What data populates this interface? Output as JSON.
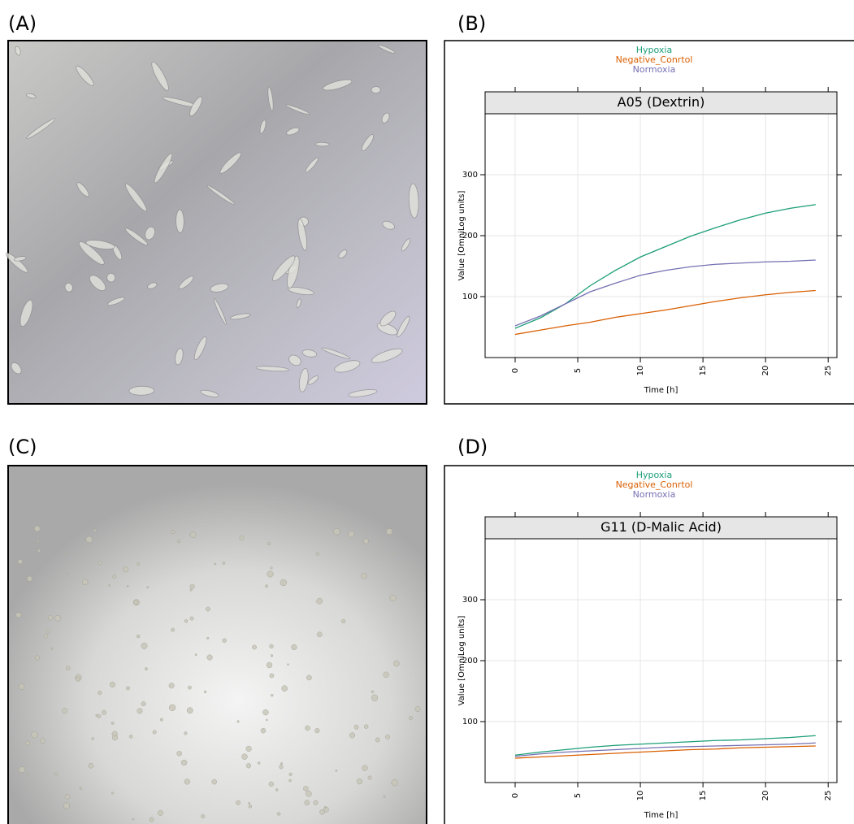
{
  "panel_labels": [
    "(A)",
    "(B)",
    "(C)",
    "(D)"
  ],
  "chart_data": [
    {
      "type": "line",
      "title": "A05 (Dextrin)",
      "ylabel": "Value [OmniLog units]",
      "xlabel": "Time [h]",
      "x": [
        0,
        2,
        4,
        6,
        8,
        10,
        12,
        14,
        16,
        18,
        20,
        22,
        24
      ],
      "series": [
        {
          "name": "Hypoxia",
          "color": "#1b9e77",
          "values": [
            48,
            65,
            88,
            118,
            143,
            165,
            182,
            199,
            213,
            226,
            237,
            245,
            251
          ]
        },
        {
          "name": "Negative_Conrtol",
          "color": "#d95f02",
          "values": [
            38,
            45,
            52,
            58,
            66,
            72,
            78,
            85,
            92,
            98,
            103,
            107,
            110
          ]
        },
        {
          "name": "Normoxia",
          "color": "#7570b3",
          "values": [
            52,
            68,
            88,
            108,
            122,
            135,
            143,
            149,
            153,
            155,
            157,
            158,
            160
          ]
        }
      ],
      "xlim": [
        -2.4,
        25.7
      ],
      "ylim": [
        0,
        400
      ],
      "xticks": [
        0,
        5,
        10,
        15,
        20,
        25
      ],
      "yticks": [
        100,
        200,
        300
      ],
      "grid": true
    },
    {
      "type": "line",
      "title": "G11 (D-Malic Acid)",
      "ylabel": "Value [OmniLog units]",
      "xlabel": "Time [h]",
      "x": [
        0,
        2,
        4,
        6,
        8,
        10,
        12,
        14,
        16,
        18,
        20,
        22,
        24
      ],
      "series": [
        {
          "name": "Hypoxia",
          "color": "#1b9e77",
          "values": [
            45,
            50,
            54,
            58,
            61,
            63,
            65,
            67,
            69,
            70,
            72,
            74,
            77
          ]
        },
        {
          "name": "Negative_Conrtol",
          "color": "#d95f02",
          "values": [
            40,
            42,
            44,
            46,
            48,
            50,
            52,
            54,
            55,
            57,
            58,
            59,
            60
          ]
        },
        {
          "name": "Normoxia",
          "color": "#7570b3",
          "values": [
            43,
            47,
            50,
            52,
            54,
            56,
            58,
            59,
            60,
            61,
            62,
            63,
            65
          ]
        }
      ],
      "xlim": [
        -2.4,
        25.7
      ],
      "ylim": [
        0,
        400
      ],
      "xticks": [
        0,
        5,
        10,
        15,
        20,
        25
      ],
      "yticks": [
        100,
        200,
        300
      ],
      "grid": true
    }
  ]
}
